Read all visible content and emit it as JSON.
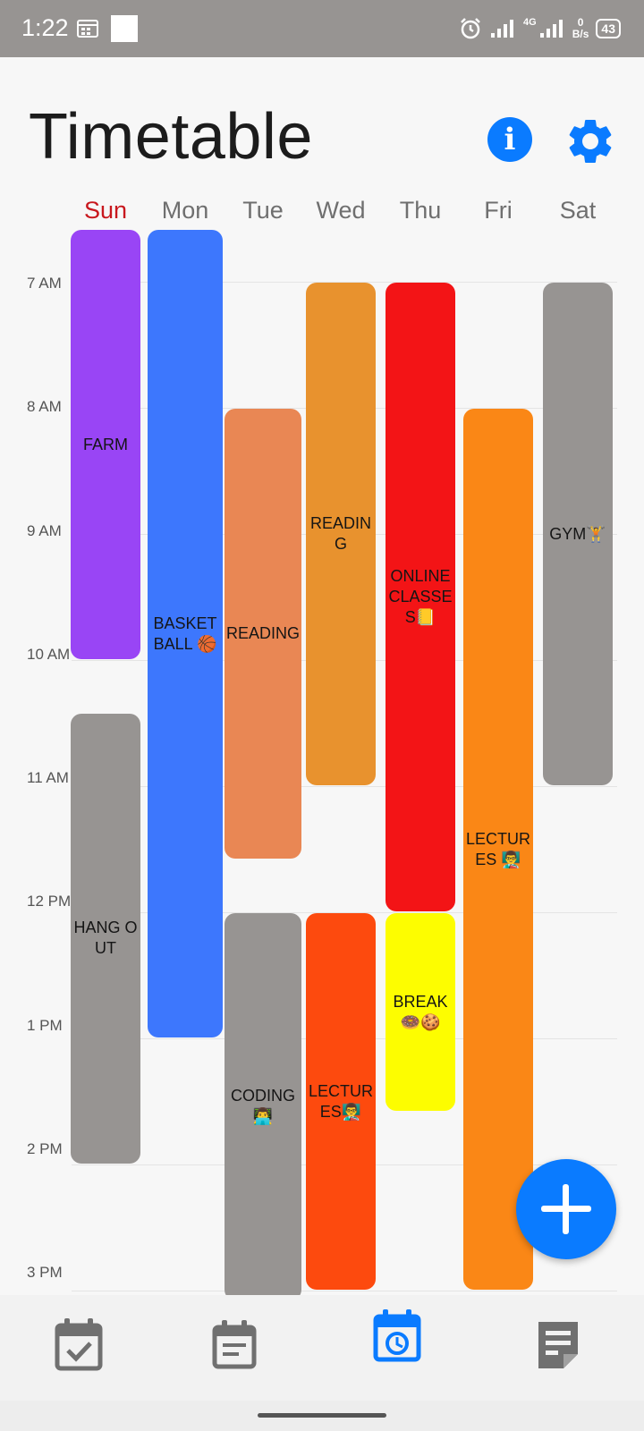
{
  "status_bar": {
    "time": "1:22",
    "network_label": "4G",
    "net_speed_value": "0",
    "net_speed_unit": "B/s",
    "battery": "43"
  },
  "header": {
    "title": "Timetable"
  },
  "days": [
    "Sun",
    "Mon",
    "Tue",
    "Wed",
    "Thu",
    "Fri",
    "Sat"
  ],
  "hours": [
    "7 AM",
    "8 AM",
    "9 AM",
    "10 AM",
    "11 AM",
    "12 PM",
    "1 PM",
    "2 PM",
    "3 PM"
  ],
  "events": [
    {
      "name": "FARM",
      "day": "Sun",
      "start": "6:35",
      "end": "10:00",
      "color": "#9945f5"
    },
    {
      "name": "HANG OUT",
      "day": "Sun",
      "start": "10:25",
      "end": "14:00",
      "color": "#979492"
    },
    {
      "name": "BASKETBALL 🏀",
      "day": "Mon",
      "start": "6:35",
      "end": "13:00",
      "color": "#3d77fd"
    },
    {
      "name": "READING",
      "day": "Tue",
      "start": "8:00",
      "end": "11:35",
      "color": "#e98754"
    },
    {
      "name": "CODING 👨‍💻",
      "day": "Tue",
      "start": "12:00",
      "end": "15:05",
      "color": "#979492"
    },
    {
      "name": "READING",
      "day": "Wed",
      "start": "7:00",
      "end": "11:00",
      "color": "#e8922e"
    },
    {
      "name": "LECTURES👨‍🏫",
      "day": "Wed",
      "start": "12:00",
      "end": "15:00",
      "color": "#fd4a0e"
    },
    {
      "name": "ONLINE CLASSES📒",
      "day": "Thu",
      "start": "7:00",
      "end": "12:00",
      "color": "#f31416"
    },
    {
      "name": "BREAK 🍩🍪",
      "day": "Thu",
      "start": "12:00",
      "end": "13:35",
      "color": "#fdfd00"
    },
    {
      "name": "LECTURES 👨‍🏫",
      "day": "Fri",
      "start": "8:00",
      "end": "15:00",
      "color": "#fa8716"
    },
    {
      "name": "GYM🏋",
      "day": "Sat",
      "start": "7:00",
      "end": "11:00",
      "color": "#979492"
    }
  ],
  "colors": {
    "accent": "#0a7bff",
    "sunday_header": "#c8181e"
  },
  "bottom_nav": {
    "items": [
      {
        "icon": "calendar-check-icon",
        "active": false
      },
      {
        "icon": "calendar-note-icon",
        "active": false
      },
      {
        "icon": "calendar-clock-icon",
        "active": true
      },
      {
        "icon": "note-icon",
        "active": false
      }
    ]
  }
}
